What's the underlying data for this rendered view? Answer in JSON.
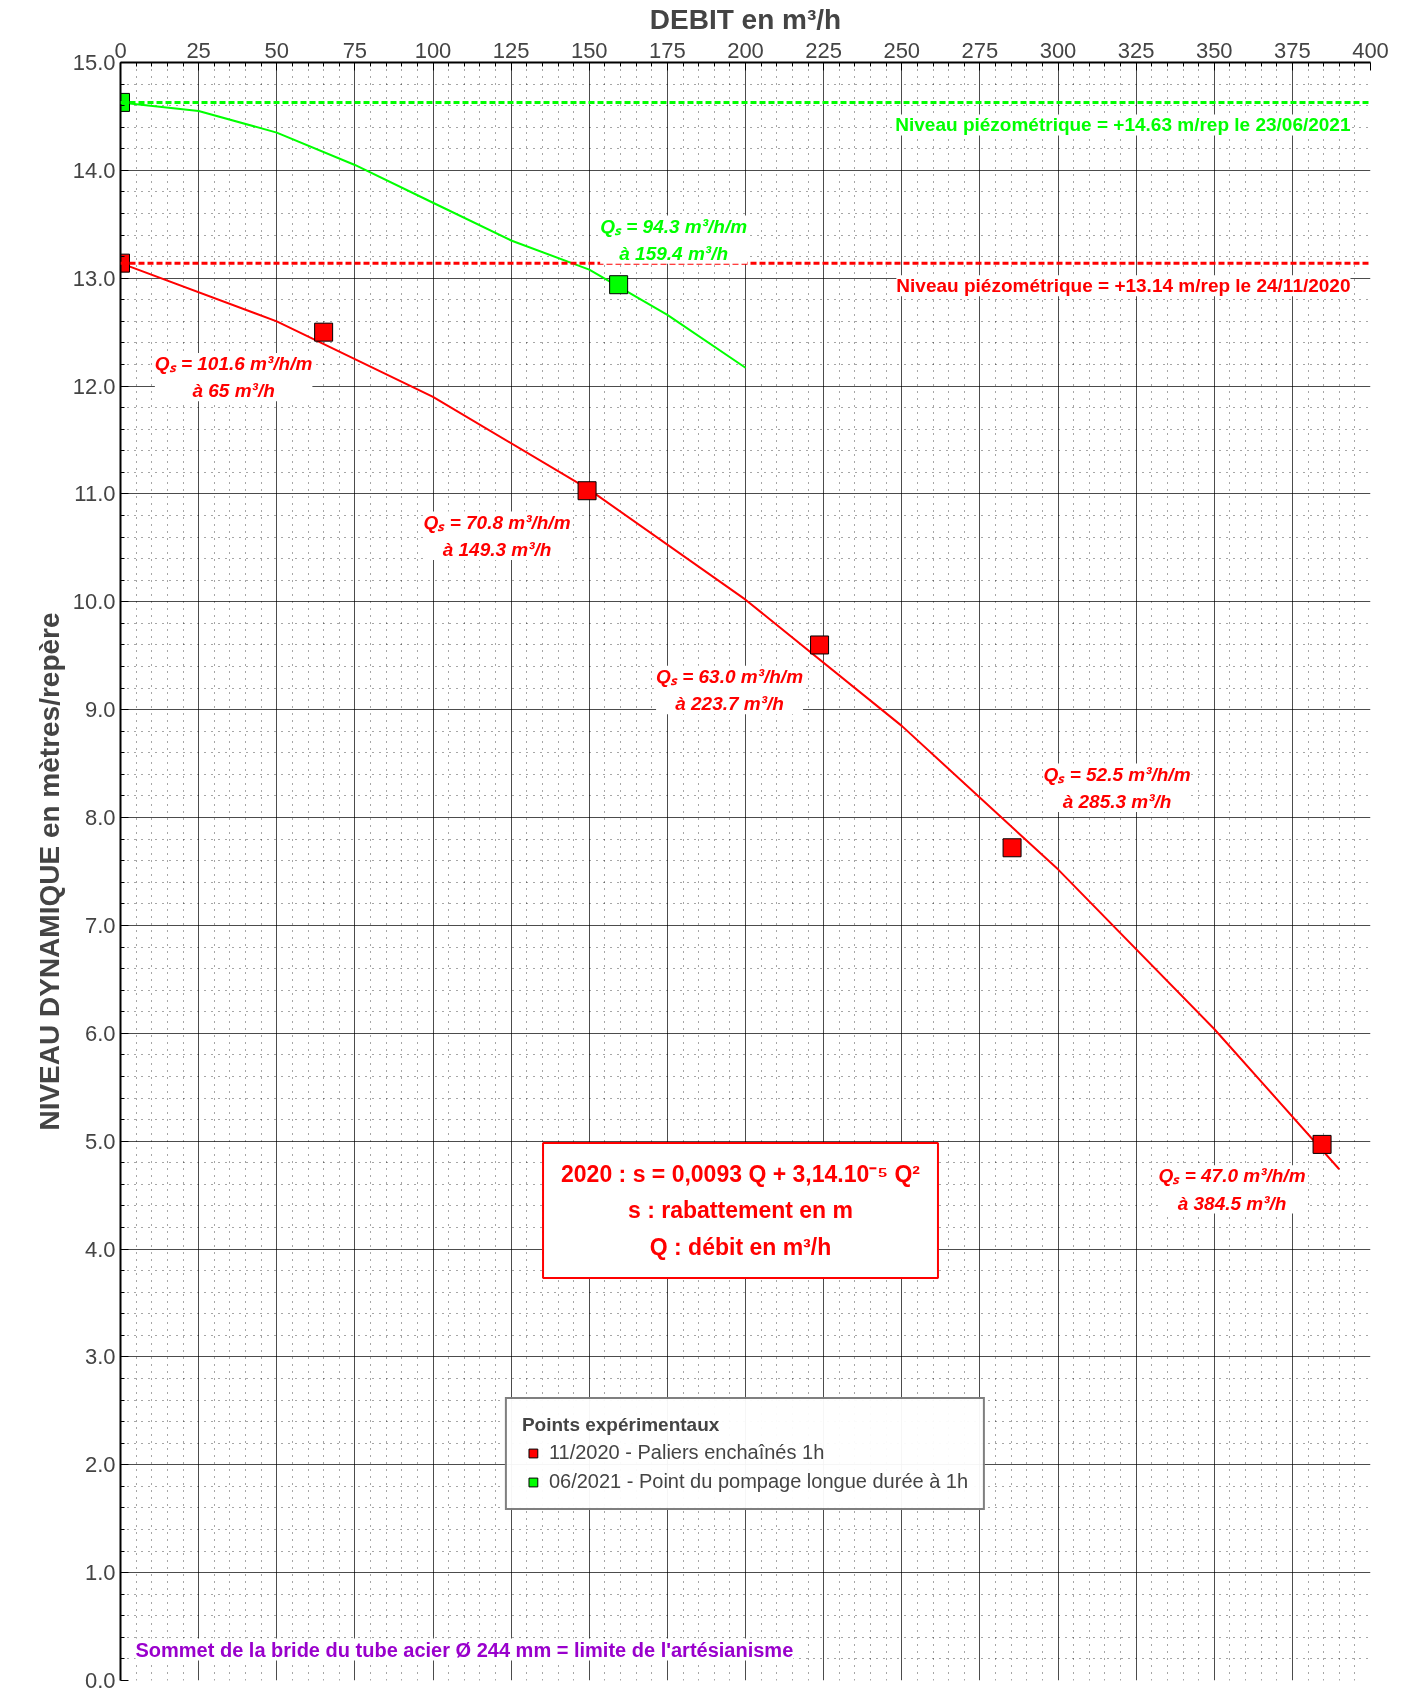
{
  "chart_data": {
    "type": "scatter",
    "xlabel": "DEBIT en m³/h",
    "ylabel": "NIVEAU DYNAMIQUE en mètres/repère",
    "legend_title": "Points expérimentaux",
    "xlim": [
      0,
      400
    ],
    "xticks": [
      0,
      25,
      50,
      75,
      100,
      125,
      150,
      175,
      200,
      225,
      250,
      275,
      300,
      325,
      350,
      375,
      400
    ],
    "ylim": [
      0,
      15
    ],
    "yticks": [
      {
        "value": 0,
        "label": "0.0"
      },
      {
        "value": 1,
        "label": "1.0"
      },
      {
        "value": 2,
        "label": "2.0"
      },
      {
        "value": 3,
        "label": "3.0"
      },
      {
        "value": 4,
        "label": "4.0"
      },
      {
        "value": 5,
        "label": "5.0"
      },
      {
        "value": 6,
        "label": "6.0"
      },
      {
        "value": 7,
        "label": "7.0"
      },
      {
        "value": 8,
        "label": "8.0"
      },
      {
        "value": 9,
        "label": "9.0"
      },
      {
        "value": 10,
        "label": "10.0"
      },
      {
        "value": 11,
        "label": "11.0"
      },
      {
        "value": 12,
        "label": "12.0"
      },
      {
        "value": 13,
        "label": "13.0"
      },
      {
        "value": 14,
        "label": "14.0"
      },
      {
        "value": 15,
        "label": "15.0"
      }
    ],
    "grid": true,
    "legend": "bottom",
    "marker": "square",
    "series": [
      {
        "name": "11/2020 - Paliers enchaînés 1h",
        "color": "#ff0000",
        "x": [
          0,
          65,
          149.3,
          223.7,
          285.3,
          384.5
        ],
        "values": [
          13.14,
          12.5,
          11.03,
          9.6,
          7.72,
          4.97
        ]
      },
      {
        "name": "06/2021 - Point du pompage longue durée à 1h",
        "color": "#00ff00",
        "x": [
          0,
          159.4
        ],
        "values": [
          14.63,
          12.94
        ]
      },
      {
        "type": "line",
        "marker": "none",
        "color": "#ff0000",
        "x": [
          0,
          50,
          100,
          150,
          200,
          250,
          300,
          350,
          390
        ],
        "values": [
          13.14,
          12.6,
          11.9,
          11.04,
          10.02,
          8.85,
          7.52,
          6.04,
          4.74
        ]
      },
      {
        "type": "line",
        "marker": "none",
        "color": "#00ff00",
        "x": [
          0,
          25,
          50,
          75,
          100,
          125,
          150,
          175,
          200
        ],
        "values": [
          14.63,
          14.55,
          14.35,
          14.05,
          13.7,
          13.35,
          13.08,
          12.66,
          12.17
        ]
      }
    ],
    "ref_lines": [
      {
        "axis": "y",
        "value": 14.63,
        "label": "Niveau piézométrique = +14.63 m/rep le 23/06/2021",
        "color": "#00ff00",
        "line_style": "dashed"
      },
      {
        "axis": "y",
        "value": 13.14,
        "label": "Niveau piézométrique = +13.14 m/rep le 24/11/2020",
        "color": "#ff0000",
        "line_style": "dashed"
      }
    ],
    "annotations": [
      {
        "text": "Qₛ = 94.3 m³/h/m\nà 159.4 m³/h",
        "x": 159.4,
        "y": 12.94
      },
      {
        "text": "Qₛ = 101.6 m³/h/m\nà 65 m³/h",
        "x": 65,
        "y": 12.5
      },
      {
        "text": "Qₛ = 70.8 m³/h/m\nà 149.3 m³/h",
        "x": 149.3,
        "y": 11.03
      },
      {
        "text": "Qₛ = 63.0 m³/h/m\nà 223.7 m³/h",
        "x": 223.7,
        "y": 9.6
      },
      {
        "text": "Qₛ = 52.5 m³/h/m\nà 285.3 m³/h",
        "x": 285.3,
        "y": 7.72
      },
      {
        "text": "Qₛ = 47.0 m³/h/m\nà 384.5 m³/h",
        "x": 384.5,
        "y": 4.97
      },
      "2020 : s = 0,0093 Q + 3,14.10⁻⁵ Q²\ns : rabattement en m\nQ : débit en m³/h",
      "Sommet de la bride du tube acier Ø 244 mm = limite de l'artésianisme"
    ]
  }
}
